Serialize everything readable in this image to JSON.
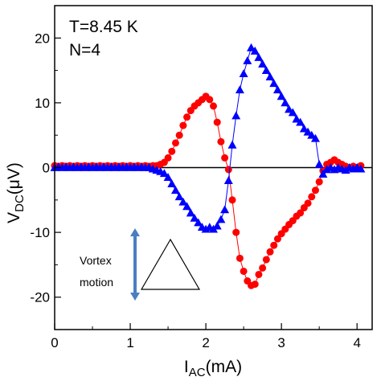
{
  "chart_data": {
    "type": "scatter",
    "xlabel": {
      "main": "I",
      "sub": "AC",
      "unit": "(mA)"
    },
    "ylabel": {
      "main": "V",
      "sub": "DC",
      "unit": "(μV)"
    },
    "xlim": [
      0,
      4.2
    ],
    "ylim": [
      -25,
      25
    ],
    "xticks": [
      0,
      1,
      2,
      3,
      4
    ],
    "yticks": [
      -20,
      -10,
      0,
      10,
      20
    ],
    "x_minor_step": 0.5,
    "y_minor_step": 5,
    "grid": false,
    "annotations": [
      "T=8.45 K",
      "N=4"
    ],
    "inset": {
      "label_line1": "Vortex",
      "label_line2": "motion"
    },
    "series": [
      {
        "marker": "circle",
        "color": "#ff0000",
        "points": [
          [
            0.0,
            0.3
          ],
          [
            0.05,
            0.2
          ],
          [
            0.1,
            0.3
          ],
          [
            0.15,
            0.2
          ],
          [
            0.2,
            0.3
          ],
          [
            0.25,
            0.2
          ],
          [
            0.3,
            0.3
          ],
          [
            0.35,
            0.2
          ],
          [
            0.4,
            0.3
          ],
          [
            0.45,
            0.2
          ],
          [
            0.5,
            0.3
          ],
          [
            0.55,
            0.2
          ],
          [
            0.6,
            0.3
          ],
          [
            0.65,
            0.2
          ],
          [
            0.7,
            0.3
          ],
          [
            0.75,
            0.2
          ],
          [
            0.8,
            0.3
          ],
          [
            0.85,
            0.2
          ],
          [
            0.9,
            0.3
          ],
          [
            0.95,
            0.2
          ],
          [
            1.0,
            0.3
          ],
          [
            1.05,
            0.2
          ],
          [
            1.1,
            0.3
          ],
          [
            1.15,
            0.2
          ],
          [
            1.2,
            0.3
          ],
          [
            1.25,
            0.2
          ],
          [
            1.3,
            0.3
          ],
          [
            1.35,
            0.3
          ],
          [
            1.4,
            0.5
          ],
          [
            1.45,
            0.8
          ],
          [
            1.5,
            1.5
          ],
          [
            1.55,
            2.5
          ],
          [
            1.6,
            3.8
          ],
          [
            1.65,
            5.0
          ],
          [
            1.7,
            6.5
          ],
          [
            1.75,
            7.8
          ],
          [
            1.8,
            8.8
          ],
          [
            1.85,
            9.5
          ],
          [
            1.9,
            10.0
          ],
          [
            1.95,
            10.5
          ],
          [
            2.0,
            11.0
          ],
          [
            2.05,
            10.5
          ],
          [
            2.1,
            9.5
          ],
          [
            2.15,
            7.0
          ],
          [
            2.2,
            4.0
          ],
          [
            2.25,
            1.5
          ],
          [
            2.3,
            -0.3
          ],
          [
            2.35,
            -5.0
          ],
          [
            2.4,
            -10.0
          ],
          [
            2.45,
            -14.0
          ],
          [
            2.5,
            -16.0
          ],
          [
            2.55,
            -17.5
          ],
          [
            2.6,
            -18.2
          ],
          [
            2.65,
            -18.0
          ],
          [
            2.7,
            -16.5
          ],
          [
            2.75,
            -15.5
          ],
          [
            2.8,
            -14.2
          ],
          [
            2.85,
            -13.0
          ],
          [
            2.9,
            -12.0
          ],
          [
            2.95,
            -11.0
          ],
          [
            3.0,
            -10.2
          ],
          [
            3.05,
            -9.5
          ],
          [
            3.1,
            -8.8
          ],
          [
            3.15,
            -8.2
          ],
          [
            3.2,
            -7.5
          ],
          [
            3.25,
            -7.0
          ],
          [
            3.3,
            -6.2
          ],
          [
            3.35,
            -5.5
          ],
          [
            3.4,
            -4.5
          ],
          [
            3.45,
            -3.5
          ],
          [
            3.5,
            -2.2
          ],
          [
            3.55,
            -0.5
          ],
          [
            3.6,
            0.5
          ],
          [
            3.65,
            0.8
          ],
          [
            3.7,
            1.2
          ],
          [
            3.75,
            0.8
          ],
          [
            3.8,
            0.5
          ],
          [
            3.85,
            0.2
          ],
          [
            3.9,
            0.0
          ],
          [
            3.95,
            0.2
          ],
          [
            4.0,
            0.0
          ],
          [
            4.05,
            0.3
          ]
        ]
      },
      {
        "marker": "triangle",
        "color": "#0000ff",
        "points": [
          [
            0.0,
            0.0
          ],
          [
            0.05,
            0.1
          ],
          [
            0.1,
            0.0
          ],
          [
            0.15,
            0.1
          ],
          [
            0.2,
            0.0
          ],
          [
            0.25,
            0.1
          ],
          [
            0.3,
            0.0
          ],
          [
            0.35,
            0.1
          ],
          [
            0.4,
            0.0
          ],
          [
            0.45,
            0.1
          ],
          [
            0.5,
            0.0
          ],
          [
            0.55,
            0.1
          ],
          [
            0.6,
            0.0
          ],
          [
            0.65,
            0.1
          ],
          [
            0.7,
            0.0
          ],
          [
            0.75,
            0.1
          ],
          [
            0.8,
            0.0
          ],
          [
            0.85,
            0.1
          ],
          [
            0.9,
            0.0
          ],
          [
            0.95,
            0.1
          ],
          [
            1.0,
            0.0
          ],
          [
            1.05,
            0.1
          ],
          [
            1.1,
            0.0
          ],
          [
            1.15,
            0.1
          ],
          [
            1.2,
            0.0
          ],
          [
            1.25,
            0.0
          ],
          [
            1.3,
            -0.2
          ],
          [
            1.35,
            -0.4
          ],
          [
            1.4,
            -0.6
          ],
          [
            1.45,
            -0.9
          ],
          [
            1.5,
            -1.5
          ],
          [
            1.55,
            -2.5
          ],
          [
            1.6,
            -3.5
          ],
          [
            1.65,
            -4.5
          ],
          [
            1.7,
            -5.3
          ],
          [
            1.75,
            -6.0
          ],
          [
            1.8,
            -7.0
          ],
          [
            1.85,
            -7.8
          ],
          [
            1.9,
            -8.5
          ],
          [
            1.95,
            -9.2
          ],
          [
            2.0,
            -9.5
          ],
          [
            2.05,
            -9.2
          ],
          [
            2.1,
            -9.5
          ],
          [
            2.15,
            -9.0
          ],
          [
            2.2,
            -8.0
          ],
          [
            2.25,
            -6.5
          ],
          [
            2.3,
            -2.0
          ],
          [
            2.35,
            3.5
          ],
          [
            2.4,
            8.0
          ],
          [
            2.45,
            12.0
          ],
          [
            2.5,
            14.5
          ],
          [
            2.55,
            16.5
          ],
          [
            2.6,
            18.5
          ],
          [
            2.65,
            18.0
          ],
          [
            2.7,
            17.0
          ],
          [
            2.75,
            16.0
          ],
          [
            2.8,
            15.0
          ],
          [
            2.85,
            14.0
          ],
          [
            2.9,
            13.0
          ],
          [
            2.95,
            12.0
          ],
          [
            3.0,
            11.0
          ],
          [
            3.05,
            10.0
          ],
          [
            3.1,
            9.0
          ],
          [
            3.15,
            8.5
          ],
          [
            3.2,
            7.5
          ],
          [
            3.25,
            7.0
          ],
          [
            3.3,
            6.0
          ],
          [
            3.35,
            5.5
          ],
          [
            3.4,
            5.0
          ],
          [
            3.45,
            4.5
          ],
          [
            3.5,
            0.5
          ],
          [
            3.55,
            -1.0
          ],
          [
            3.6,
            -0.3
          ],
          [
            3.65,
            0.0
          ],
          [
            3.7,
            -0.3
          ],
          [
            3.75,
            0.0
          ],
          [
            3.8,
            -0.2
          ],
          [
            3.85,
            -0.4
          ],
          [
            3.9,
            0.0
          ],
          [
            3.95,
            -0.2
          ],
          [
            4.0,
            0.0
          ],
          [
            4.05,
            -0.2
          ]
        ]
      }
    ]
  }
}
